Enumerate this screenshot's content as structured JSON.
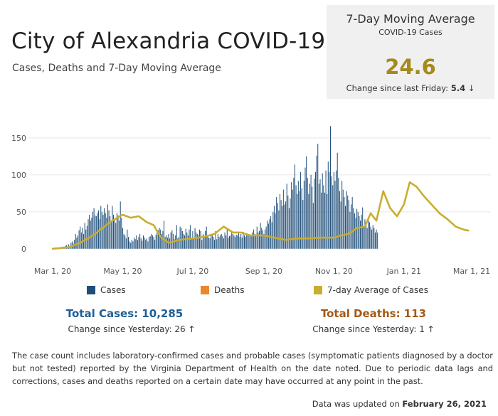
{
  "header": {
    "title": "City of Alexandria COVID-19",
    "subtitle": "Cases, Deaths and 7-Day Moving Average"
  },
  "kpi": {
    "title": "7-Day Moving Average",
    "subtitle": "COVID-19 Cases",
    "value": "24.6",
    "change_label": "Change since last Friday:",
    "change_value": "5.4",
    "change_arrow": "↓"
  },
  "legend": {
    "cases": "Cases",
    "deaths": "Deaths",
    "avg": "7-day Average of Cases"
  },
  "totals": {
    "cases_label": "Total Cases: 10,285",
    "cases_change": "Change since Yesterday: 26 ↑",
    "deaths_label": "Total Deaths: 113",
    "deaths_change": "Change since Yesterday: 1 ↑"
  },
  "note": "The case count includes laboratory-confirmed cases and probable cases (symptomatic patients diagnosed by a doctor but not tested) reported by the Virginia Department of Health on the date noted. Due to periodic data lags and corrections, cases and deaths reported on a certain date may have occurred at any point in the past.",
  "updated": {
    "label": "Data was updated on",
    "date": "February 26, 2021"
  },
  "colors": {
    "cases": "#1f4e79",
    "deaths": "#e8892b",
    "avg": "#c9ad2e",
    "cases_total_text": "#1f5f95",
    "deaths_total_text": "#a35a16",
    "grid": "#e6e6e6"
  },
  "chart_data": {
    "type": "bar",
    "x_axis": {
      "start": "2020-03-01",
      "end": "2021-03-01",
      "ticks": [
        "Mar 1, 20",
        "May 1, 20",
        "Jul 1, 20",
        "Sep 1, 20",
        "Nov 1, 20",
        "Jan 1, 21",
        "Mar 1, 21"
      ],
      "tick_days": [
        0,
        61,
        122,
        184,
        245,
        306,
        365
      ]
    },
    "y_axis": {
      "ticks": [
        0,
        50,
        100,
        150
      ],
      "ylim": [
        -5,
        175
      ]
    },
    "grid": true,
    "legend_position": "bottom",
    "series": [
      {
        "name": "Cases",
        "type": "bar",
        "x_start": "2020-03-05",
        "values": [
          1,
          0,
          1,
          2,
          1,
          3,
          2,
          4,
          5,
          3,
          6,
          4,
          8,
          10,
          7,
          12,
          20,
          15,
          18,
          25,
          30,
          22,
          28,
          20,
          35,
          26,
          31,
          40,
          46,
          38,
          42,
          50,
          55,
          45,
          44,
          48,
          52,
          40,
          58,
          50,
          46,
          55,
          48,
          42,
          60,
          52,
          44,
          38,
          58,
          46,
          40,
          35,
          48,
          45,
          38,
          64,
          42,
          28,
          20,
          18,
          14,
          26,
          16,
          10,
          8,
          12,
          10,
          15,
          13,
          18,
          12,
          16,
          20,
          14,
          11,
          18,
          15,
          12,
          14,
          10,
          16,
          17,
          20,
          18,
          16,
          12,
          19,
          22,
          25,
          28,
          26,
          20,
          24,
          38,
          16,
          18,
          15,
          20,
          14,
          22,
          25,
          20,
          13,
          18,
          32,
          14,
          16,
          30,
          28,
          24,
          20,
          18,
          27,
          22,
          18,
          26,
          32,
          15,
          24,
          14,
          28,
          22,
          20,
          18,
          26,
          24,
          12,
          20,
          16,
          24,
          30,
          17,
          15,
          14,
          18,
          19,
          16,
          12,
          24,
          13,
          20,
          16,
          18,
          20,
          17,
          14,
          22,
          18,
          26,
          15,
          17,
          18,
          22,
          20,
          18,
          16,
          19,
          18,
          22,
          16,
          20,
          15,
          23,
          18,
          16,
          21,
          18,
          20,
          17,
          18,
          22,
          26,
          20,
          18,
          30,
          22,
          24,
          35,
          28,
          25,
          20,
          26,
          30,
          38,
          34,
          40,
          44,
          36,
          50,
          58,
          48,
          70,
          62,
          52,
          74,
          66,
          58,
          80,
          60,
          64,
          88,
          72,
          55,
          68,
          90,
          80,
          96,
          114,
          86,
          74,
          92,
          78,
          104,
          82,
          66,
          92,
          110,
          125,
          96,
          74,
          88,
          100,
          84,
          62,
          95,
          104,
          126,
          142,
          88,
          94,
          76,
          102,
          86,
          76,
          106,
          74,
          118,
          104,
          166,
          98,
          86,
          104,
          92,
          106,
          130,
          96,
          78,
          64,
          92,
          80,
          70,
          58,
          78,
          72,
          66,
          50,
          60,
          70,
          55,
          48,
          42,
          54,
          50,
          44,
          38,
          46,
          56,
          30,
          40,
          34,
          28,
          40,
          36,
          30,
          26,
          32,
          28,
          22,
          26,
          22
        ]
      },
      {
        "name": "Deaths",
        "type": "bar",
        "values": []
      },
      {
        "name": "7-day Average of Cases",
        "type": "line",
        "x": [
          "2020-03-01",
          "2020-03-15",
          "2020-03-25",
          "2020-04-05",
          "2020-04-15",
          "2020-04-22",
          "2020-05-01",
          "2020-05-08",
          "2020-05-15",
          "2020-05-22",
          "2020-05-28",
          "2020-06-03",
          "2020-06-10",
          "2020-06-20",
          "2020-07-01",
          "2020-07-10",
          "2020-07-20",
          "2020-07-28",
          "2020-08-05",
          "2020-08-12",
          "2020-08-20",
          "2020-09-01",
          "2020-09-10",
          "2020-09-20",
          "2020-10-01",
          "2020-10-10",
          "2020-10-20",
          "2020-11-01",
          "2020-11-07",
          "2020-11-14",
          "2020-11-21",
          "2020-11-28",
          "2020-12-03",
          "2020-12-08",
          "2020-12-14",
          "2020-12-20",
          "2020-12-26",
          "2021-01-01",
          "2021-01-06",
          "2021-01-12",
          "2021-01-18",
          "2021-01-25",
          "2021-02-01",
          "2021-02-08",
          "2021-02-15",
          "2021-02-22",
          "2021-02-26"
        ],
        "y": [
          0,
          2,
          8,
          18,
          30,
          38,
          46,
          42,
          44,
          36,
          32,
          16,
          8,
          12,
          14,
          16,
          20,
          30,
          22,
          22,
          18,
          18,
          15,
          12,
          14,
          14,
          15,
          15,
          18,
          20,
          28,
          30,
          48,
          38,
          78,
          55,
          44,
          60,
          90,
          84,
          72,
          60,
          48,
          40,
          30,
          26,
          24.6
        ]
      }
    ]
  }
}
